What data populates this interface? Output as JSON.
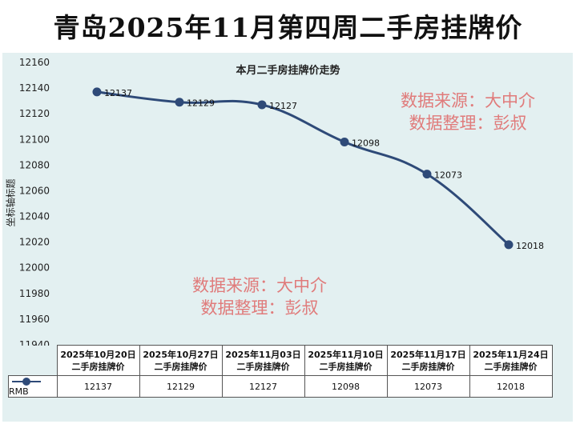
{
  "page": {
    "banner_title": "青岛2025年11月第四周二手房挂牌价",
    "watermark_line1": "数据来源：大中介",
    "watermark_line2": "数据整理：彭叔"
  },
  "chart_data": {
    "type": "line",
    "title": "本月二手房挂牌价走势",
    "ylabel": "坐标轴标题",
    "xlabel": "",
    "categories": [
      [
        "2025年10月20日",
        "二手房挂牌价"
      ],
      [
        "2025年10月27日",
        "二手房挂牌价"
      ],
      [
        "2025年11月03日",
        "二手房挂牌价"
      ],
      [
        "2025年11月10日",
        "二手房挂牌价"
      ],
      [
        "2025年11月17日",
        "二手房挂牌价"
      ],
      [
        "2025年11月24日",
        "二手房挂牌价"
      ]
    ],
    "series": [
      {
        "name": "RMB",
        "values": [
          12137,
          12129,
          12127,
          12098,
          12073,
          12018
        ],
        "color": "#2e4a78"
      }
    ],
    "ylim": [
      11940,
      12160
    ],
    "ytick_step": 20,
    "grid": false,
    "smooth": true,
    "data_labels": true,
    "data_table": true,
    "background": "#e3f0f1"
  }
}
